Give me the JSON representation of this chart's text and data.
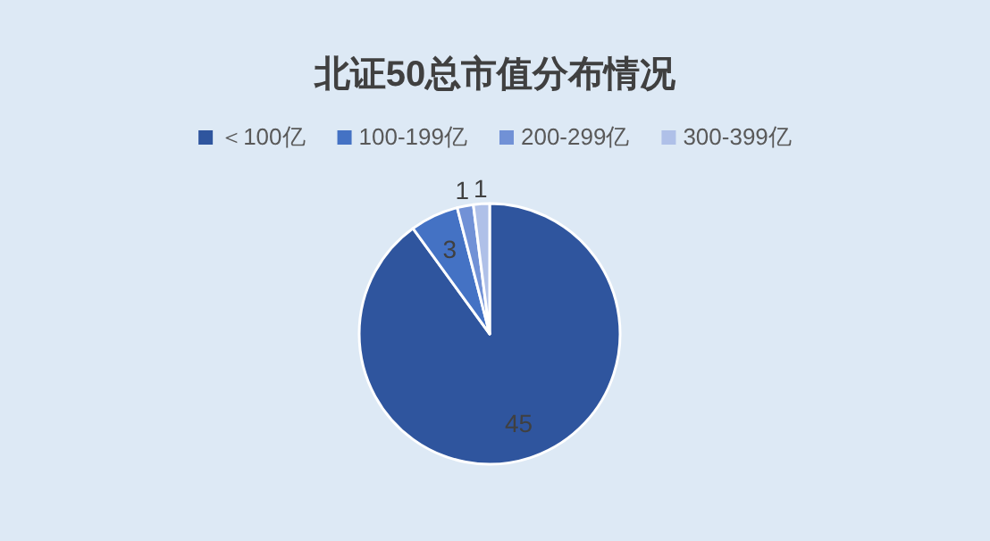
{
  "chart_data": {
    "type": "pie",
    "title": "北证50总市值分布情况",
    "categories": [
      "＜100亿",
      "100-199亿",
      "200-299亿",
      "300-399亿"
    ],
    "values": [
      45,
      3,
      1,
      1
    ],
    "colors": [
      "#2f559e",
      "#4472c4",
      "#7191d6",
      "#afc0e8"
    ],
    "data_labels": true,
    "legend": "top"
  }
}
